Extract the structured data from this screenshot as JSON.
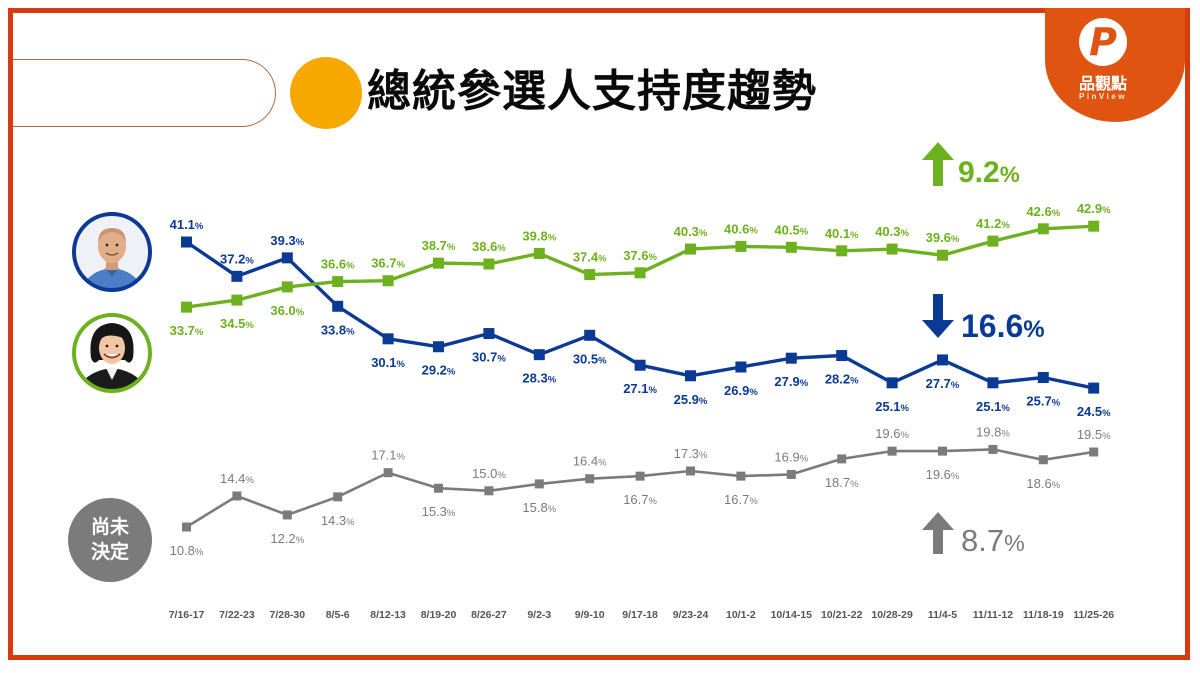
{
  "header": {
    "title": "總統參選人支持度趨勢"
  },
  "logo": {
    "letter": "P",
    "name_zh": "品觀點",
    "name_en": "PinView",
    "color": "#e05412"
  },
  "legend": {
    "blue_candidate": {
      "icon": "person-avatar-blue",
      "color": "#0b3a94"
    },
    "green_candidate": {
      "icon": "person-avatar-green",
      "color": "#6db21e"
    },
    "undecided": {
      "line1": "尚未",
      "line2": "決定",
      "color": "#7b7b7b"
    }
  },
  "annotations": [
    {
      "series": "green-candidate",
      "direction": "up",
      "value": "9.2",
      "unit": "%",
      "color": "#6db21e"
    },
    {
      "series": "blue-candidate",
      "direction": "down",
      "value": "16.6",
      "unit": "%",
      "color": "#0b3a94"
    },
    {
      "series": "尚未決定",
      "direction": "up",
      "value": "8.7",
      "unit": "%",
      "color": "#7b7b7b"
    }
  ],
  "chart_data": {
    "type": "line",
    "title": "總統參選人支持度趨勢",
    "xlabel": "",
    "ylabel": "",
    "value_suffix": "%",
    "grid": false,
    "legend_position": "left (candidate photos / 尚未決定 badge)",
    "categories": [
      "7/16-17",
      "7/22-23",
      "7/28-30",
      "8/5-6",
      "8/12-13",
      "8/19-20",
      "8/26-27",
      "9/2-3",
      "9/9-10",
      "9/17-18",
      "9/23-24",
      "10/1-2",
      "10/14-15",
      "10/21-22",
      "10/28-29",
      "11/4-5",
      "11/11-12",
      "11/18-19",
      "11/25-26"
    ],
    "series": [
      {
        "name": "blue-candidate",
        "color": "#0b3a94",
        "values": [
          41.1,
          37.2,
          39.3,
          33.8,
          30.1,
          29.2,
          30.7,
          28.3,
          30.5,
          27.1,
          25.9,
          26.9,
          27.9,
          28.2,
          25.1,
          27.7,
          25.1,
          25.7,
          24.5
        ],
        "label_positions": [
          "a",
          "a",
          "a",
          "b",
          "b",
          "b",
          "b",
          "b",
          "b",
          "b",
          "b",
          "b",
          "b",
          "b",
          "b",
          "b",
          "b",
          "b",
          "b"
        ],
        "change": "-16.6%"
      },
      {
        "name": "green-candidate",
        "color": "#6db21e",
        "values": [
          33.7,
          34.5,
          36.0,
          36.6,
          36.7,
          38.7,
          38.6,
          39.8,
          37.4,
          37.6,
          40.3,
          40.6,
          40.5,
          40.1,
          40.3,
          39.6,
          41.2,
          42.6,
          42.9
        ],
        "label_positions": [
          "b",
          "b",
          "b",
          "a",
          "a",
          "a",
          "a",
          "a",
          "a",
          "a",
          "a",
          "a",
          "a",
          "a",
          "a",
          "a",
          "a",
          "a",
          "a"
        ],
        "change": "+9.2%"
      },
      {
        "name": "尚未決定",
        "color": "#7b7b7b",
        "values": [
          10.8,
          14.4,
          12.2,
          14.3,
          17.1,
          15.3,
          15.0,
          15.8,
          16.4,
          16.7,
          17.3,
          16.7,
          16.9,
          18.7,
          19.6,
          19.6,
          19.8,
          18.6,
          19.5
        ],
        "label_positions": [
          "b",
          "a",
          "b",
          "b",
          "a",
          "b",
          "a",
          "b",
          "a",
          "b",
          "a",
          "b",
          "a",
          "b",
          "a",
          "b",
          "a",
          "b",
          "a"
        ],
        "change": "+8.7%"
      }
    ]
  }
}
